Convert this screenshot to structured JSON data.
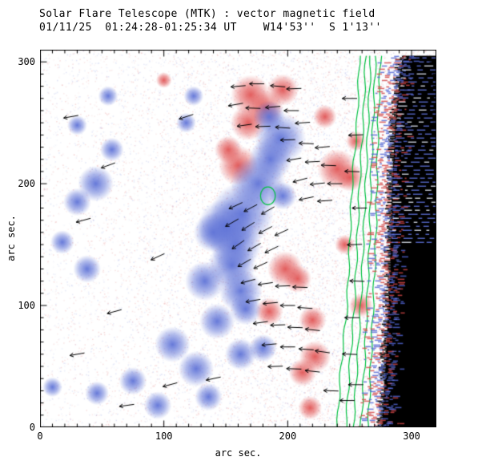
{
  "chart_data": {
    "type": "heatmap",
    "title": "Solar Flare Telescope (MTK) : vector magnetic field",
    "subtitle": "01/11/25  01:24:28-01:25:34 UT    W14'53''  S 1'13''",
    "xlabel": "arc sec.",
    "ylabel": "arc sec.",
    "xlim": [
      0,
      320
    ],
    "ylim": [
      0,
      310
    ],
    "x_ticks": [
      0,
      100,
      200,
      300
    ],
    "y_ticks": [
      0,
      100,
      200,
      300
    ],
    "minor_tick_step": 10,
    "colors": {
      "positive_polarity": "#e15555",
      "negative_polarity": "#5f73d7",
      "contour": "#00c040",
      "off_limb": "#000000",
      "vector_arrow": "#000000",
      "frame": "#000000"
    },
    "blobs_negative": [
      [
        194,
        237,
        13
      ],
      [
        186,
        220,
        11
      ],
      [
        176,
        200,
        14
      ],
      [
        163,
        175,
        16
      ],
      [
        150,
        165,
        14
      ],
      [
        158,
        150,
        13
      ],
      [
        155,
        133,
        12
      ],
      [
        162,
        112,
        11
      ],
      [
        166,
        97,
        8
      ],
      [
        140,
        160,
        10
      ],
      [
        133,
        120,
        10
      ],
      [
        143,
        87,
        9
      ],
      [
        180,
        65,
        7
      ],
      [
        196,
        190,
        7
      ],
      [
        185,
        255,
        8
      ],
      [
        45,
        200,
        9
      ],
      [
        30,
        185,
        7
      ],
      [
        58,
        228,
        6
      ],
      [
        18,
        152,
        6
      ],
      [
        38,
        130,
        7
      ],
      [
        118,
        250,
        5
      ],
      [
        55,
        272,
        5
      ],
      [
        124,
        272,
        5
      ],
      [
        30,
        248,
        5
      ],
      [
        107,
        68,
        9
      ],
      [
        126,
        48,
        9
      ],
      [
        75,
        38,
        7
      ],
      [
        46,
        28,
        6
      ],
      [
        95,
        18,
        7
      ],
      [
        136,
        25,
        7
      ],
      [
        162,
        60,
        8
      ],
      [
        10,
        33,
        5
      ]
    ],
    "blobs_positive": [
      [
        170,
        273,
        10
      ],
      [
        182,
        262,
        9
      ],
      [
        196,
        277,
        8
      ],
      [
        168,
        250,
        9
      ],
      [
        160,
        215,
        10
      ],
      [
        152,
        228,
        7
      ],
      [
        240,
        212,
        10
      ],
      [
        250,
        205,
        7
      ],
      [
        198,
        130,
        9
      ],
      [
        208,
        122,
        7
      ],
      [
        185,
        95,
        7
      ],
      [
        220,
        88,
        7
      ],
      [
        222,
        58,
        8
      ],
      [
        212,
        45,
        7
      ],
      [
        246,
        150,
        5
      ],
      [
        230,
        255,
        6
      ],
      [
        255,
        235,
        5
      ],
      [
        259,
        100,
        6
      ],
      [
        218,
        16,
        6
      ],
      [
        100,
        285,
        4
      ]
    ],
    "arrow_length": 12,
    "arrows": [
      [
        160,
        280,
        185
      ],
      [
        175,
        282,
        180
      ],
      [
        192,
        280,
        175
      ],
      [
        205,
        278,
        182
      ],
      [
        158,
        265,
        190
      ],
      [
        172,
        262,
        178
      ],
      [
        188,
        263,
        185
      ],
      [
        203,
        260,
        180
      ],
      [
        165,
        248,
        188
      ],
      [
        180,
        247,
        182
      ],
      [
        196,
        246,
        176
      ],
      [
        212,
        250,
        184
      ],
      [
        200,
        236,
        182
      ],
      [
        215,
        233,
        178
      ],
      [
        228,
        230,
        185
      ],
      [
        205,
        220,
        190
      ],
      [
        220,
        218,
        183
      ],
      [
        233,
        215,
        178
      ],
      [
        210,
        203,
        195
      ],
      [
        224,
        200,
        186
      ],
      [
        238,
        200,
        180
      ],
      [
        215,
        188,
        192
      ],
      [
        230,
        186,
        184
      ],
      [
        158,
        182,
        205
      ],
      [
        170,
        180,
        208
      ],
      [
        184,
        178,
        210
      ],
      [
        155,
        168,
        210
      ],
      [
        168,
        165,
        212
      ],
      [
        182,
        162,
        208
      ],
      [
        195,
        160,
        205
      ],
      [
        160,
        150,
        215
      ],
      [
        173,
        148,
        210
      ],
      [
        187,
        146,
        206
      ],
      [
        165,
        135,
        210
      ],
      [
        178,
        133,
        205
      ],
      [
        168,
        120,
        195
      ],
      [
        182,
        118,
        188
      ],
      [
        196,
        116,
        182
      ],
      [
        210,
        115,
        178
      ],
      [
        172,
        104,
        190
      ],
      [
        186,
        102,
        185
      ],
      [
        200,
        100,
        180
      ],
      [
        214,
        98,
        176
      ],
      [
        178,
        86,
        188
      ],
      [
        192,
        84,
        182
      ],
      [
        206,
        82,
        178
      ],
      [
        220,
        80,
        174
      ],
      [
        185,
        68,
        185
      ],
      [
        200,
        66,
        180
      ],
      [
        215,
        64,
        176
      ],
      [
        228,
        62,
        172
      ],
      [
        190,
        50,
        182
      ],
      [
        205,
        48,
        178
      ],
      [
        220,
        46,
        174
      ],
      [
        250,
        270,
        180
      ],
      [
        255,
        240,
        182
      ],
      [
        252,
        210,
        178
      ],
      [
        258,
        180,
        180
      ],
      [
        254,
        150,
        182
      ],
      [
        256,
        120,
        178
      ],
      [
        252,
        90,
        180
      ],
      [
        250,
        60,
        178
      ],
      [
        255,
        35,
        180
      ],
      [
        55,
        215,
        200
      ],
      [
        35,
        170,
        195
      ],
      [
        95,
        140,
        205
      ],
      [
        60,
        95,
        195
      ],
      [
        30,
        60,
        190
      ],
      [
        105,
        35,
        195
      ],
      [
        70,
        18,
        188
      ],
      [
        140,
        40,
        192
      ],
      [
        25,
        255,
        190
      ],
      [
        118,
        255,
        198
      ],
      [
        235,
        30,
        178
      ],
      [
        248,
        22,
        180
      ]
    ],
    "contours": [
      [
        [
          258,
          305
        ],
        [
          256,
          250
        ],
        [
          252,
          200
        ],
        [
          250,
          150
        ],
        [
          248,
          100
        ],
        [
          243,
          50
        ],
        [
          240,
          0
        ]
      ],
      [
        [
          263,
          305
        ],
        [
          261,
          250
        ],
        [
          258,
          200
        ],
        [
          256,
          150
        ],
        [
          254,
          100
        ],
        [
          250,
          50
        ],
        [
          247,
          0
        ]
      ],
      [
        [
          267,
          305
        ],
        [
          265,
          250
        ],
        [
          263,
          200
        ],
        [
          261,
          150
        ],
        [
          259,
          100
        ],
        [
          256,
          50
        ],
        [
          253,
          0
        ]
      ],
      [
        [
          271,
          305
        ],
        [
          269,
          250
        ],
        [
          267,
          200
        ],
        [
          266,
          150
        ],
        [
          264,
          100
        ],
        [
          262,
          50
        ],
        [
          259,
          0
        ]
      ],
      [
        [
          275,
          305
        ],
        [
          273,
          250
        ],
        [
          272,
          200
        ],
        [
          271,
          150
        ],
        [
          269,
          100
        ],
        [
          267,
          50
        ],
        [
          265,
          0
        ]
      ]
    ],
    "green_circle": {
      "x": 184,
      "y": 190,
      "r": 6
    },
    "limb_edge": [
      [
        293,
        305
      ],
      [
        291,
        290
      ],
      [
        289,
        270
      ],
      [
        287,
        250
      ],
      [
        286,
        230
      ],
      [
        285,
        210
      ],
      [
        284,
        190
      ],
      [
        284,
        170
      ],
      [
        283,
        150
      ],
      [
        283,
        130
      ],
      [
        282,
        110
      ],
      [
        281,
        90
      ],
      [
        280,
        70
      ],
      [
        279,
        50
      ],
      [
        278,
        30
      ],
      [
        277,
        15
      ],
      [
        276,
        0
      ]
    ]
  }
}
